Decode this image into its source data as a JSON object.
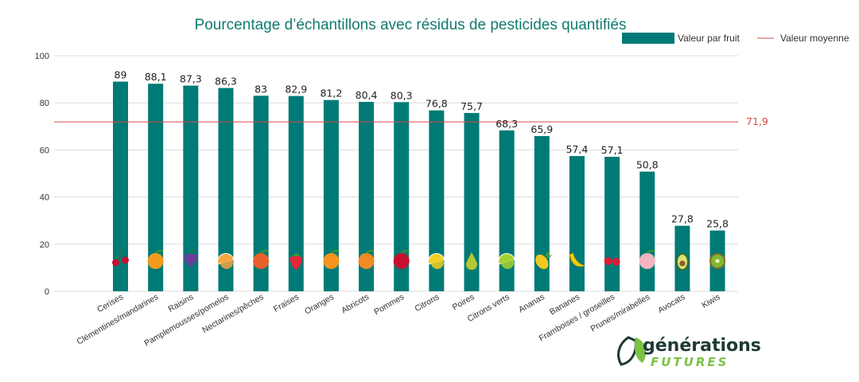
{
  "chart_data": {
    "type": "bar",
    "title": "Pourcentage d’échantillons avec résidus de pesticides quantifiés",
    "xlabel": "",
    "ylabel": "",
    "ylim": [
      0,
      100
    ],
    "yticks": [
      "0",
      "20",
      "40",
      "60",
      "80",
      "100"
    ],
    "grid": true,
    "legend_position": "top-right",
    "categories": [
      "Cerises",
      "Clémentines/mandarines",
      "Raisins",
      "Pamplemousses/pomelos",
      "Nectarines/pêches",
      "Fraises",
      "Oranges",
      "Abricots",
      "Pommes",
      "Citrons",
      "Poires",
      "Citrons verts",
      "Ananas",
      "Bananes",
      "Framboises / groseilles",
      "Prunes/mirabelles",
      "Avocats",
      "Kiwis"
    ],
    "series": [
      {
        "name": "Valeur par fruit",
        "values": [
          89,
          88.1,
          87.3,
          86.3,
          83,
          82.9,
          81.2,
          80.4,
          80.3,
          76.8,
          75.7,
          68.3,
          65.9,
          57.4,
          57.1,
          50.8,
          27.8,
          25.8
        ],
        "labels": [
          "89",
          "88,1",
          "87,3",
          "86,3",
          "83",
          "82,9",
          "81,2",
          "80,4",
          "80,3",
          "76,8",
          "75,7",
          "68,3",
          "65,9",
          "57,4",
          "57,1",
          "50,8",
          "27,8",
          "25,8"
        ],
        "color": "#007a76"
      }
    ],
    "reference_line": {
      "name": "Valeur moyenne",
      "value": 71.9,
      "label": "71,9",
      "color": "#d94a4a"
    },
    "fruit_icons": [
      "cherry-icon",
      "clementine-icon",
      "grapes-icon",
      "grapefruit-icon",
      "peach-icon",
      "strawberry-icon",
      "orange-icon",
      "apricot-icon",
      "apple-icon",
      "lemon-icon",
      "pear-icon",
      "lime-icon",
      "pineapple-icon",
      "banana-icon",
      "raspberry-icon",
      "plum-icon",
      "avocado-icon",
      "kiwi-icon"
    ],
    "fruit_colors": [
      "#c8102e",
      "#f59b1c",
      "#6a3d9a",
      "#f7a541",
      "#e8602c",
      "#e32636",
      "#f7931e",
      "#f08a24",
      "#c8102e",
      "#f2d024",
      "#b5c934",
      "#a6d22e",
      "#f2c81e",
      "#f5d000",
      "#d71f3a",
      "#f3b5c0",
      "#7a9a2e",
      "#8a6a2e"
    ]
  },
  "logo": {
    "top": "générations",
    "bottom": "FUTURES",
    "colors": {
      "dark": "#1f3a35",
      "green": "#7cc243"
    }
  }
}
